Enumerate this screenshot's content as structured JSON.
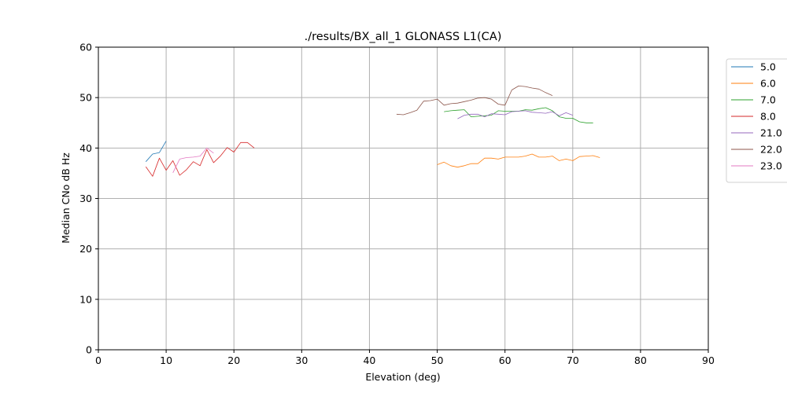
{
  "chart_data": {
    "type": "line",
    "title": "./results/BX_all_1 GLONASS L1(CA)",
    "xlabel": "Elevation (deg)",
    "ylabel": "Median CNo dB Hz",
    "xlim": [
      0,
      90
    ],
    "ylim": [
      0,
      60
    ],
    "xticks": [
      "0",
      "10",
      "20",
      "30",
      "40",
      "50",
      "60",
      "70",
      "80",
      "90"
    ],
    "yticks": [
      "0",
      "10",
      "20",
      "30",
      "40",
      "50",
      "60"
    ],
    "grid": true,
    "legend_position": "outside upper right",
    "series": [
      {
        "name": "5.0",
        "color": "#1f77b4",
        "x": [
          7,
          8,
          9,
          10
        ],
        "y": [
          37.3,
          38.8,
          39.1,
          41.4
        ]
      },
      {
        "name": "6.0",
        "color": "#ff7f0e",
        "x": [
          50,
          51,
          52,
          53,
          54,
          55,
          56,
          57,
          58,
          59,
          60,
          61,
          62,
          63,
          64,
          65,
          66,
          67,
          68,
          69,
          70,
          71,
          72,
          73,
          74
        ],
        "y": [
          36.7,
          37.2,
          36.5,
          36.2,
          36.5,
          36.9,
          36.9,
          38.0,
          38.0,
          37.8,
          38.2,
          38.2,
          38.2,
          38.4,
          38.8,
          38.2,
          38.2,
          38.4,
          37.5,
          37.8,
          37.5,
          38.3,
          38.4,
          38.5,
          38.1
        ]
      },
      {
        "name": "7.0",
        "color": "#2ca02c",
        "x": [
          51,
          52,
          53,
          54,
          55,
          56,
          57,
          58,
          59,
          60,
          61,
          62,
          63,
          64,
          65,
          66,
          67,
          68,
          69,
          70,
          71,
          72,
          73
        ],
        "y": [
          47.2,
          47.4,
          47.5,
          47.6,
          46.2,
          46.3,
          46.4,
          46.5,
          47.4,
          47.3,
          47.3,
          47.3,
          47.6,
          47.5,
          47.8,
          48.0,
          47.4,
          46.2,
          45.9,
          45.9,
          45.2,
          45.0,
          45.0
        ]
      },
      {
        "name": "8.0",
        "color": "#d62728",
        "x": [
          7,
          8,
          9,
          10,
          11,
          12,
          13,
          14,
          15,
          16,
          17,
          18,
          19,
          20,
          21,
          22,
          23
        ],
        "y": [
          36.3,
          34.4,
          38.0,
          35.6,
          37.5,
          34.6,
          35.7,
          37.3,
          36.5,
          39.7,
          37.1,
          38.4,
          40.1,
          39.2,
          41.1,
          41.1,
          40.0
        ]
      },
      {
        "name": "21.0",
        "color": "#9467bd",
        "x": [
          53,
          54,
          55,
          56,
          57,
          58,
          59,
          60,
          61,
          62,
          63,
          64,
          65,
          66,
          67,
          68,
          69,
          70
        ],
        "y": [
          45.8,
          46.5,
          46.7,
          46.7,
          46.2,
          46.8,
          46.7,
          46.6,
          47.2,
          47.3,
          47.4,
          47.1,
          47.0,
          46.9,
          47.2,
          46.4,
          47.0,
          46.5
        ]
      },
      {
        "name": "22.0",
        "color": "#8c564b",
        "x": [
          44,
          45,
          46,
          47,
          48,
          49,
          50,
          51,
          52,
          53,
          54,
          55,
          56,
          57,
          58,
          59,
          60,
          61,
          62,
          63,
          64,
          65,
          66,
          67
        ],
        "y": [
          46.7,
          46.6,
          47.0,
          47.5,
          49.3,
          49.4,
          49.7,
          48.5,
          48.8,
          48.9,
          49.2,
          49.5,
          49.9,
          50.0,
          49.7,
          48.7,
          48.5,
          51.5,
          52.3,
          52.2,
          51.9,
          51.7,
          51.0,
          50.4
        ]
      },
      {
        "name": "23.0",
        "color": "#e377c2",
        "x": [
          11,
          12,
          13,
          14,
          15,
          16,
          17
        ],
        "y": [
          35.1,
          37.8,
          38.1,
          38.2,
          38.4,
          40.0,
          39.0
        ]
      }
    ]
  }
}
